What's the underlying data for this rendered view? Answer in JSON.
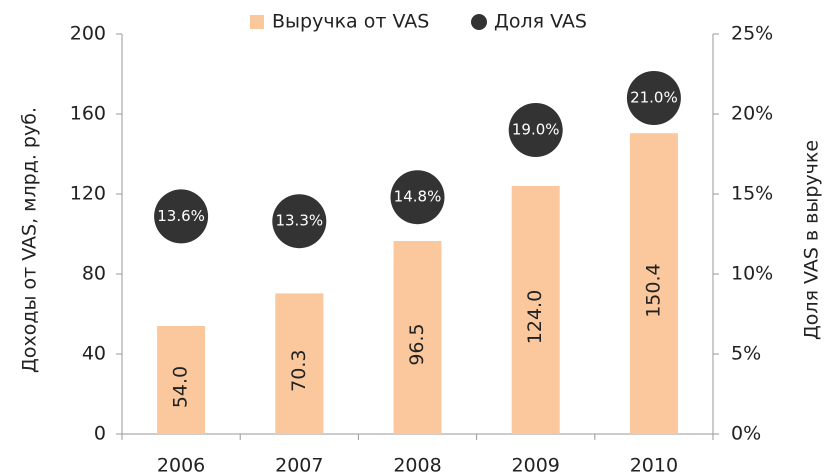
{
  "chart_data": {
    "type": "bar",
    "categories": [
      "2006",
      "2007",
      "2008",
      "2009",
      "2010"
    ],
    "series": [
      {
        "name": "Выручка от VAS",
        "color": "#fac89c",
        "values": [
          54.0,
          70.3,
          96.5,
          124.0,
          150.4
        ],
        "value_labels": [
          "54.0",
          "70.3",
          "96.5",
          "124.0",
          "150.4"
        ]
      },
      {
        "name": "Доля VAS",
        "color": "#333333",
        "axis": "y2",
        "values": [
          13.6,
          13.3,
          14.8,
          19.0,
          21.0
        ],
        "value_labels": [
          "13.6%",
          "13.3%",
          "14.8%",
          "19.0%",
          "21.0%"
        ]
      }
    ],
    "ylabel": "Доходы от VAS, млрд. руб.",
    "y2label": "Доля VAS в выручке",
    "ylim": [
      0,
      200
    ],
    "yticks": [
      0,
      40,
      80,
      120,
      160,
      200
    ],
    "y2lim": [
      0,
      25
    ],
    "y2ticks": [
      {
        "value": 0,
        "label": "0%"
      },
      {
        "value": 5,
        "label": "5%"
      },
      {
        "value": 10,
        "label": "10%"
      },
      {
        "value": 15,
        "label": "15%"
      },
      {
        "value": 20,
        "label": "20%"
      },
      {
        "value": 25,
        "label": "25%"
      }
    ],
    "legend": "top",
    "grid": false
  }
}
